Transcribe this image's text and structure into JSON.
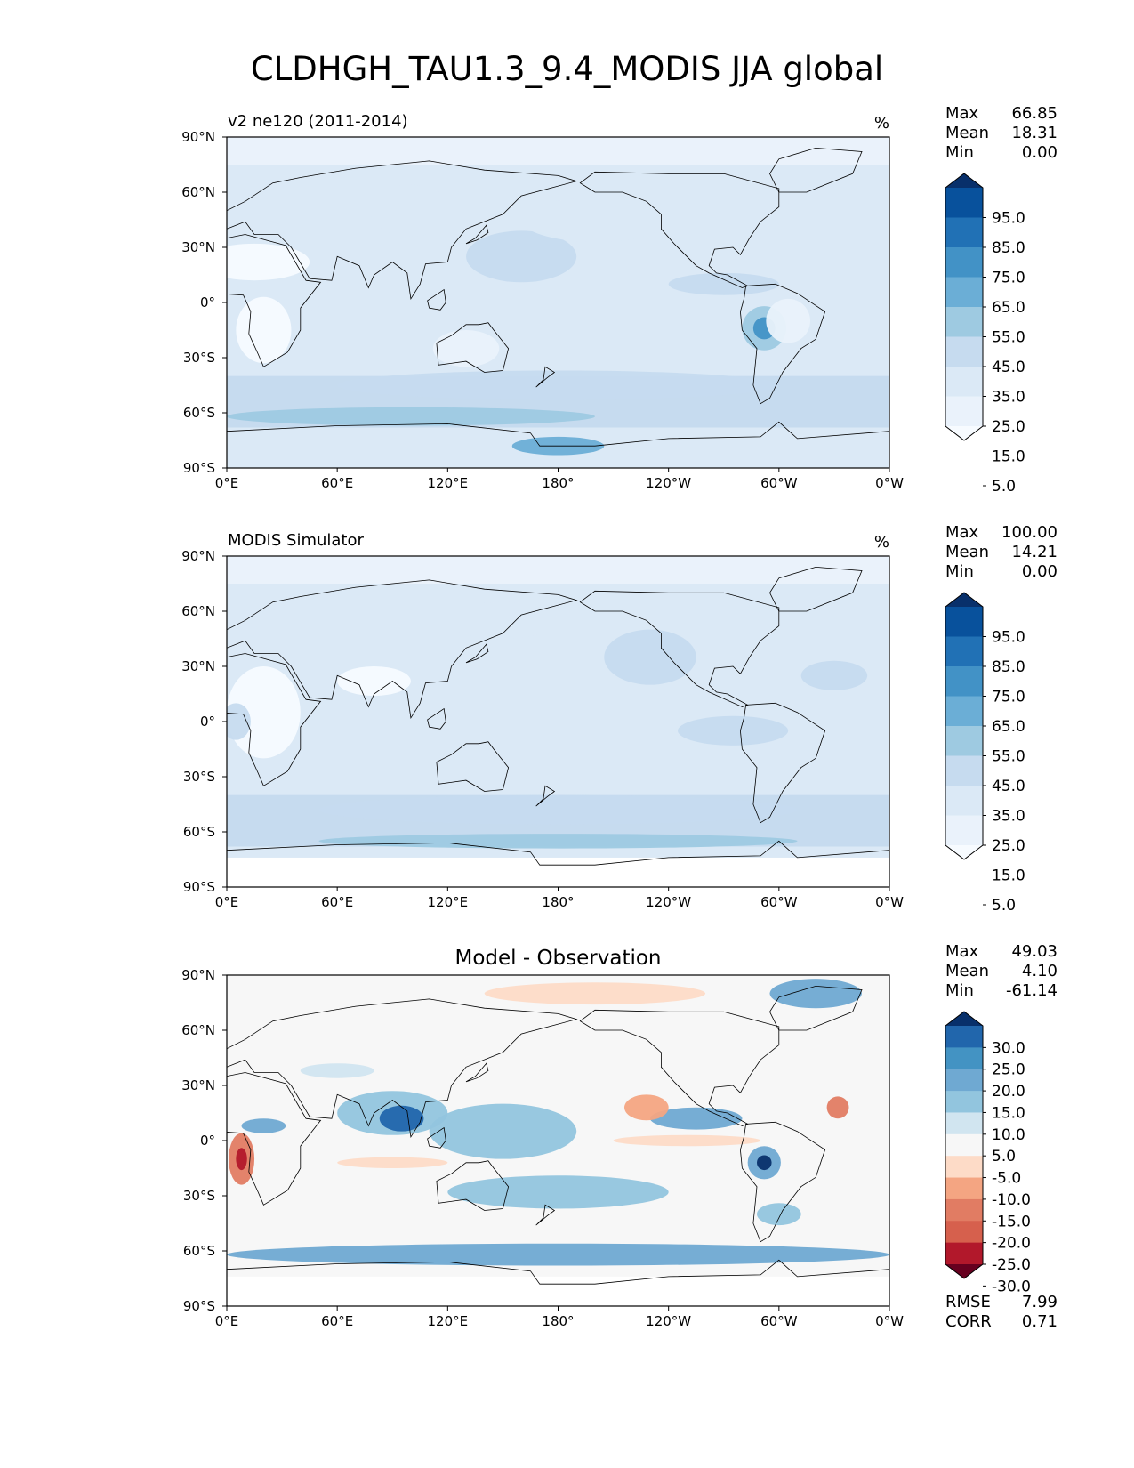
{
  "title": "CLDHGH_TAU1.3_9.4_MODIS JJA global",
  "chart_data": [
    {
      "type": "heatmap",
      "title": "",
      "left_title": "v2 ne120 (2011-2014)",
      "units": "%",
      "x_ticks": [
        "0°E",
        "60°E",
        "120°E",
        "180°",
        "120°W",
        "60°W",
        "0°W"
      ],
      "y_ticks": [
        "90°N",
        "60°N",
        "30°N",
        "0°",
        "30°S",
        "60°S",
        "90°S"
      ],
      "xlim": [
        0,
        360
      ],
      "ylim": [
        -90,
        90
      ],
      "stats": [
        {
          "label": "Max",
          "value": "66.85"
        },
        {
          "label": "Mean",
          "value": "18.31"
        },
        {
          "label": "Min",
          "value": "0.00"
        }
      ],
      "colorbar": {
        "labels": [
          "95.0",
          "85.0",
          "75.0",
          "65.0",
          "55.0",
          "45.0",
          "35.0",
          "25.0",
          "15.0",
          "5.0"
        ],
        "colors": [
          "#08306b",
          "#08519c",
          "#2171b5",
          "#4292c6",
          "#6baed6",
          "#9ecae1",
          "#c6dbef",
          "#dbe9f6",
          "#eaf2fb",
          "#f7fbff"
        ],
        "extend": "both"
      },
      "features": [
        {
          "lon": 100,
          "lat": 50,
          "rx": 22,
          "ry": 14,
          "level": 2
        },
        {
          "lon": 160,
          "lat": 25,
          "rx": 30,
          "ry": 14,
          "level": 3
        },
        {
          "lon": 200,
          "lat": 45,
          "rx": 40,
          "ry": 12,
          "level": 2
        },
        {
          "lon": 270,
          "lat": 10,
          "rx": 30,
          "ry": 6,
          "level": 3
        },
        {
          "lon": 292,
          "lat": -14,
          "rx": 12,
          "ry": 12,
          "level": 4
        },
        {
          "lon": 292,
          "lat": -14,
          "rx": 6,
          "ry": 6,
          "level": 6
        },
        {
          "lon": 30,
          "lat": 5,
          "rx": 25,
          "ry": 12,
          "level": 2
        },
        {
          "lon": 180,
          "lat": -45,
          "rx": 120,
          "ry": 8,
          "level": 3
        },
        {
          "lon": 100,
          "lat": -62,
          "rx": 100,
          "ry": 5,
          "level": 4
        },
        {
          "lon": 180,
          "lat": -78,
          "rx": 25,
          "ry": 5,
          "level": 5
        },
        {
          "lon": 20,
          "lat": -15,
          "rx": 15,
          "ry": 18,
          "level": 0
        },
        {
          "lon": 15,
          "lat": 22,
          "rx": 30,
          "ry": 10,
          "level": 0
        },
        {
          "lon": 130,
          "lat": -25,
          "rx": 18,
          "ry": 10,
          "level": 1
        },
        {
          "lon": 305,
          "lat": -10,
          "rx": 12,
          "ry": 12,
          "level": 1
        }
      ]
    },
    {
      "type": "heatmap",
      "title": "",
      "left_title": "MODIS Simulator",
      "units": "%",
      "x_ticks": [
        "0°E",
        "60°E",
        "120°E",
        "180°",
        "120°W",
        "60°W",
        "0°W"
      ],
      "y_ticks": [
        "90°N",
        "60°N",
        "30°N",
        "0°",
        "30°S",
        "60°S",
        "90°S"
      ],
      "xlim": [
        0,
        360
      ],
      "ylim": [
        -90,
        90
      ],
      "stats": [
        {
          "label": "Max",
          "value": "100.00"
        },
        {
          "label": "Mean",
          "value": "14.21"
        },
        {
          "label": "Min",
          "value": "0.00"
        }
      ],
      "colorbar": {
        "labels": [
          "95.0",
          "85.0",
          "75.0",
          "65.0",
          "55.0",
          "45.0",
          "35.0",
          "25.0",
          "15.0",
          "5.0"
        ],
        "colors": [
          "#08306b",
          "#08519c",
          "#2171b5",
          "#4292c6",
          "#6baed6",
          "#9ecae1",
          "#c6dbef",
          "#dbe9f6",
          "#eaf2fb",
          "#f7fbff"
        ],
        "extend": "both"
      },
      "features": [
        {
          "lon": 80,
          "lat": 22,
          "rx": 20,
          "ry": 8,
          "level": 0
        },
        {
          "lon": 20,
          "lat": 5,
          "rx": 20,
          "ry": 25,
          "level": 0
        },
        {
          "lon": 230,
          "lat": 35,
          "rx": 25,
          "ry": 15,
          "level": 3
        },
        {
          "lon": 330,
          "lat": 25,
          "rx": 18,
          "ry": 8,
          "level": 3
        },
        {
          "lon": 275,
          "lat": -5,
          "rx": 30,
          "ry": 8,
          "level": 3
        },
        {
          "lon": 180,
          "lat": -48,
          "rx": 130,
          "ry": 8,
          "level": 3
        },
        {
          "lon": 180,
          "lat": -65,
          "rx": 130,
          "ry": 4,
          "level": 4
        },
        {
          "lon": 150,
          "lat": 55,
          "rx": 30,
          "ry": 10,
          "level": 2
        },
        {
          "lon": 5,
          "lat": 0,
          "rx": 8,
          "ry": 10,
          "level": 3
        }
      ]
    },
    {
      "type": "heatmap",
      "title": "Model - Observation",
      "left_title": "",
      "units": "",
      "x_ticks": [
        "0°E",
        "60°E",
        "120°E",
        "180°",
        "120°W",
        "60°W",
        "0°W"
      ],
      "y_ticks": [
        "90°N",
        "60°N",
        "30°N",
        "0°",
        "30°S",
        "60°S",
        "90°S"
      ],
      "xlim": [
        0,
        360
      ],
      "ylim": [
        -90,
        90
      ],
      "stats": [
        {
          "label": "Max",
          "value": "49.03"
        },
        {
          "label": "Mean",
          "value": "4.10"
        },
        {
          "label": "Min",
          "value": "-61.14"
        }
      ],
      "metrics": [
        {
          "label": "RMSE",
          "value": "7.99"
        },
        {
          "label": "CORR",
          "value": "0.71"
        }
      ],
      "colorbar": {
        "labels": [
          "30.0",
          "25.0",
          "20.0",
          "15.0",
          "10.0",
          "5.0",
          "-5.0",
          "-10.0",
          "-15.0",
          "-20.0",
          "-25.0",
          "-30.0"
        ],
        "colors": [
          "#08306b",
          "#2166ac",
          "#4393c3",
          "#6fa9d2",
          "#92c5de",
          "#d1e5f0",
          "#f7f7f7",
          "#fddbc7",
          "#f4a582",
          "#e17c63",
          "#d6604d",
          "#b2182b",
          "#67001f"
        ],
        "extend": "both"
      },
      "features": [
        {
          "lon": 90,
          "lat": 15,
          "rx": 30,
          "ry": 12,
          "level": 4
        },
        {
          "lon": 95,
          "lat": 12,
          "rx": 12,
          "ry": 7,
          "level": 1
        },
        {
          "lon": 20,
          "lat": 8,
          "rx": 12,
          "ry": 4,
          "level": 3
        },
        {
          "lon": 150,
          "lat": 5,
          "rx": 40,
          "ry": 15,
          "level": 4
        },
        {
          "lon": 255,
          "lat": 12,
          "rx": 25,
          "ry": 6,
          "level": 3
        },
        {
          "lon": 292,
          "lat": -12,
          "rx": 9,
          "ry": 9,
          "level": 3
        },
        {
          "lon": 292,
          "lat": -12,
          "rx": 4,
          "ry": 4,
          "level": 0
        },
        {
          "lon": 8,
          "lat": -10,
          "rx": 7,
          "ry": 14,
          "level": 9
        },
        {
          "lon": 8,
          "lat": -10,
          "rx": 3,
          "ry": 6,
          "level": 11
        },
        {
          "lon": 228,
          "lat": 18,
          "rx": 12,
          "ry": 7,
          "level": 8
        },
        {
          "lon": 332,
          "lat": 18,
          "rx": 6,
          "ry": 6,
          "level": 9
        },
        {
          "lon": 90,
          "lat": -12,
          "rx": 30,
          "ry": 3,
          "level": 7
        },
        {
          "lon": 250,
          "lat": 0,
          "rx": 40,
          "ry": 3,
          "level": 7
        },
        {
          "lon": 180,
          "lat": -28,
          "rx": 60,
          "ry": 9,
          "level": 4
        },
        {
          "lon": 180,
          "lat": -62,
          "rx": 180,
          "ry": 6,
          "level": 3
        },
        {
          "lon": 320,
          "lat": 80,
          "rx": 25,
          "ry": 8,
          "level": 3
        },
        {
          "lon": 200,
          "lat": 80,
          "rx": 60,
          "ry": 6,
          "level": 7
        },
        {
          "lon": 60,
          "lat": 38,
          "rx": 20,
          "ry": 4,
          "level": 5
        },
        {
          "lon": 300,
          "lat": -40,
          "rx": 12,
          "ry": 6,
          "level": 4
        }
      ]
    }
  ]
}
